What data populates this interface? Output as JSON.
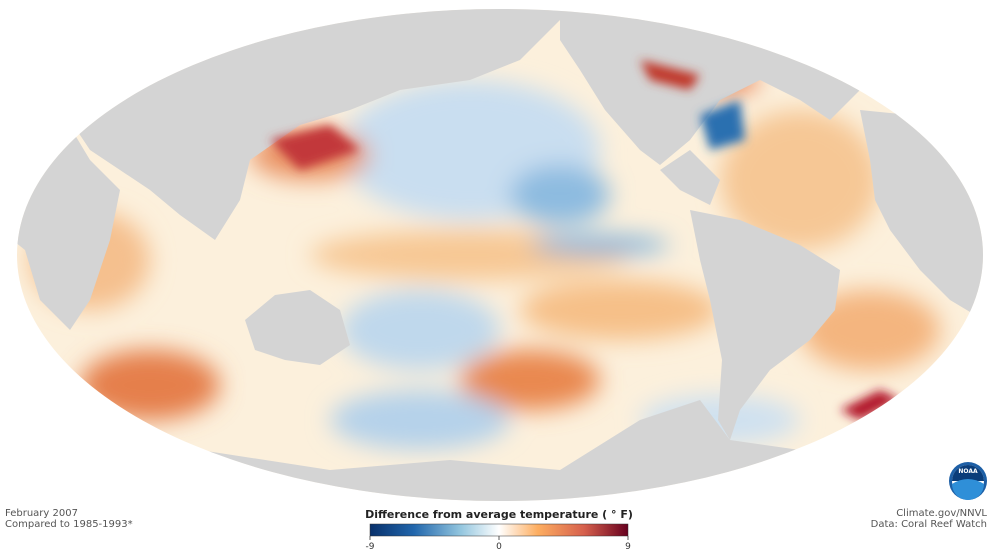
{
  "map": {
    "date": "February 2007",
    "baseline": "Compared to 1985-1993*",
    "credit": "Climate.gov/NNVL",
    "source": "Data: Coral Reef Watch"
  },
  "legend": {
    "title": "Difference from average temperature ( ° F)",
    "range": [
      -9,
      9
    ],
    "ticks": [
      -9,
      0,
      9
    ]
  }
}
